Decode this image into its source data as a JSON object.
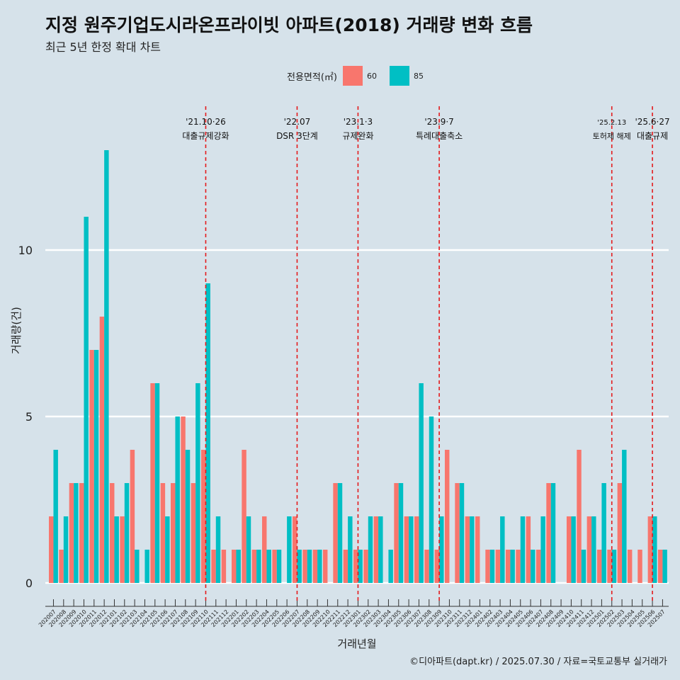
{
  "title": "지정 원주기업도시라온프라이빗 아파트(2018) 거래량 변화 흐름",
  "subtitle": "최근 5년 한정 확대 차트",
  "caption": "©디아파트(dapt.kr) / 2025.07.30 / 자료=국토교통부 실거래가",
  "legend": {
    "title": "전용면적(㎡)",
    "items": [
      {
        "label": "60",
        "color": "#f8766d"
      },
      {
        "label": "85",
        "color": "#00bfc4"
      }
    ]
  },
  "chart_data": {
    "type": "bar",
    "title": "지정 원주기업도시라온프라이빗 아파트(2018) 거래량 변화 흐름",
    "xlabel": "거래년월",
    "ylabel": "거래량(건)",
    "ylim": [
      0,
      13.5
    ],
    "yticks": [
      0,
      5,
      10
    ],
    "categories": [
      "202007",
      "202008",
      "202009",
      "202010",
      "202011",
      "202012",
      "202101",
      "202102",
      "202103",
      "202104",
      "202105",
      "202106",
      "202107",
      "202108",
      "202109",
      "202110",
      "202111",
      "202112",
      "202201",
      "202202",
      "202203",
      "202204",
      "202205",
      "202206",
      "202207",
      "202208",
      "202209",
      "202210",
      "202211",
      "202212",
      "202301",
      "202302",
      "202303",
      "202304",
      "202305",
      "202306",
      "202307",
      "202308",
      "202309",
      "202310",
      "202311",
      "202312",
      "202401",
      "202402",
      "202403",
      "202404",
      "202405",
      "202406",
      "202407",
      "202408",
      "202409",
      "202410",
      "202411",
      "202412",
      "202501",
      "202502",
      "202503",
      "202504",
      "202505",
      "202506",
      "202507"
    ],
    "series": [
      {
        "name": "60",
        "color": "#f8766d",
        "values": [
          2,
          1,
          3,
          3,
          7,
          8,
          3,
          2,
          4,
          0,
          6,
          3,
          3,
          5,
          3,
          4,
          1,
          1,
          1,
          4,
          1,
          2,
          1,
          0,
          2,
          1,
          1,
          1,
          3,
          1,
          1,
          1,
          2,
          0,
          3,
          2,
          2,
          1,
          1,
          4,
          3,
          2,
          2,
          1,
          1,
          1,
          1,
          2,
          1,
          3,
          0,
          2,
          4,
          2,
          1,
          1,
          3,
          1,
          1,
          2,
          1
        ]
      },
      {
        "name": "85",
        "color": "#00bfc4",
        "values": [
          4,
          2,
          3,
          11,
          7,
          13,
          2,
          3,
          1,
          1,
          6,
          2,
          5,
          4,
          6,
          9,
          2,
          0,
          1,
          2,
          1,
          1,
          1,
          2,
          1,
          1,
          1,
          0,
          3,
          2,
          1,
          2,
          2,
          1,
          3,
          2,
          6,
          5,
          2,
          0,
          3,
          2,
          0,
          1,
          2,
          1,
          2,
          1,
          2,
          3,
          0,
          2,
          1,
          2,
          3,
          1,
          4,
          0,
          0,
          2,
          1
        ]
      }
    ],
    "annotations": [
      {
        "date": "'21.10·26",
        "label": "대출규제강화",
        "at": "202110"
      },
      {
        "date": "'22.07",
        "label": "DSR 3단계",
        "at": "202207"
      },
      {
        "date": "'23.1·3",
        "label": "규제완화",
        "at": "202301"
      },
      {
        "date": "'23.9·7",
        "label": "특례대출축소",
        "at": "202309"
      },
      {
        "date": "'25.2.13",
        "label": "토허제 해제",
        "at": "202502"
      },
      {
        "date": "'25.6·27",
        "label": "대출규제",
        "at": "202506"
      }
    ]
  }
}
